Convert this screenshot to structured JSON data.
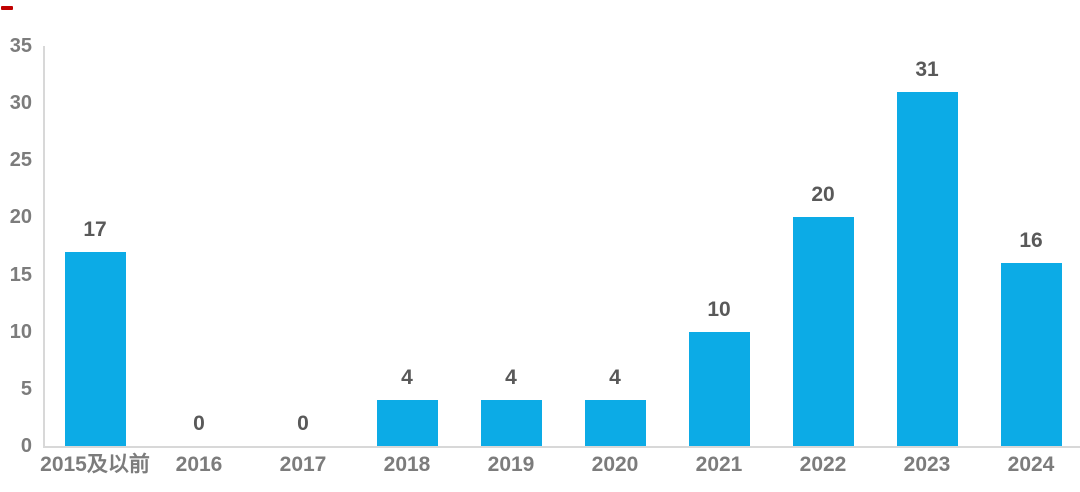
{
  "chart_data": {
    "type": "bar",
    "categories": [
      "2015及以前",
      "2016",
      "2017",
      "2018",
      "2019",
      "2020",
      "2021",
      "2022",
      "2023",
      "2024"
    ],
    "values": [
      17,
      0,
      0,
      4,
      4,
      4,
      10,
      20,
      31,
      16
    ],
    "data_labels": [
      "17",
      "0",
      "0",
      "4",
      "4",
      "4",
      "10",
      "20",
      "31",
      "16"
    ],
    "title": "",
    "xlabel": "",
    "ylabel": "",
    "ylim": [
      0,
      35
    ],
    "yticks": [
      0,
      5,
      10,
      15,
      20,
      25,
      30,
      35
    ],
    "grid": false,
    "legend": "none",
    "bar_color": "#0CABE6",
    "value_label_color": "#595959",
    "tick_label_color": "#7C7C7C",
    "axis_line_color": "#D8D8D8"
  },
  "decorations": {
    "top_left_mark_color": "#C00000"
  }
}
